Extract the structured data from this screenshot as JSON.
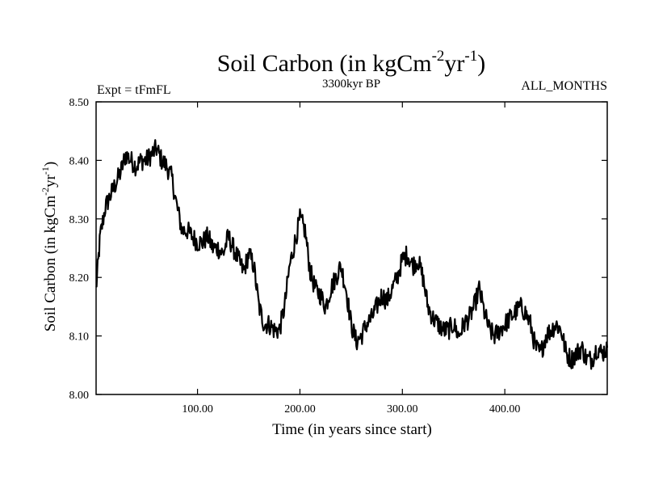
{
  "chart_data": {
    "type": "line",
    "title": "Soil Carbon (in kgCm",
    "title_sup1": "-2",
    "title_mid": "yr",
    "title_sup2": "-1",
    "title_end": ")",
    "subtitle_left": "Expt = tFmFL",
    "subtitle_center": "3300kyr BP",
    "subtitle_right": "ALL_MONTHS",
    "xlabel": "Time (in years since start)",
    "ylabel": "Soil Carbon (in kgCm",
    "ylabel_sup1": "-2",
    "ylabel_mid": "yr",
    "ylabel_sup2": "-1",
    "ylabel_end": ")",
    "xlim": [
      1,
      500
    ],
    "ylim": [
      8.0,
      8.5
    ],
    "xticks": [
      {
        "value": 100,
        "label": "100.00"
      },
      {
        "value": 200,
        "label": "200.00"
      },
      {
        "value": 300,
        "label": "300.00"
      },
      {
        "value": 400,
        "label": "400.00"
      }
    ],
    "yticks": [
      {
        "value": 8.0,
        "label": "8.00"
      },
      {
        "value": 8.1,
        "label": "8.10"
      },
      {
        "value": 8.2,
        "label": "8.20"
      },
      {
        "value": 8.3,
        "label": "8.30"
      },
      {
        "value": 8.4,
        "label": "8.40"
      },
      {
        "value": 8.5,
        "label": "8.50"
      }
    ],
    "series": [
      {
        "name": "Soil Carbon",
        "color": "#000000",
        "x": [
          1,
          5,
          10,
          15,
          20,
          25,
          30,
          35,
          40,
          45,
          50,
          55,
          60,
          65,
          70,
          75,
          80,
          85,
          90,
          95,
          100,
          105,
          110,
          115,
          120,
          125,
          130,
          135,
          140,
          145,
          150,
          155,
          160,
          165,
          170,
          175,
          180,
          185,
          190,
          195,
          200,
          205,
          210,
          215,
          220,
          225,
          230,
          235,
          240,
          245,
          250,
          255,
          260,
          265,
          270,
          275,
          280,
          285,
          290,
          295,
          300,
          305,
          310,
          315,
          320,
          325,
          330,
          335,
          340,
          345,
          350,
          355,
          360,
          365,
          370,
          375,
          380,
          385,
          390,
          395,
          400,
          405,
          410,
          415,
          420,
          425,
          430,
          435,
          440,
          445,
          450,
          455,
          460,
          465,
          470,
          475,
          480,
          485,
          490,
          495,
          500
        ],
        "values": [
          8.18,
          8.27,
          8.32,
          8.34,
          8.36,
          8.38,
          8.41,
          8.4,
          8.39,
          8.4,
          8.4,
          8.41,
          8.42,
          8.4,
          8.39,
          8.37,
          8.32,
          8.28,
          8.28,
          8.27,
          8.26,
          8.26,
          8.27,
          8.25,
          8.25,
          8.24,
          8.27,
          8.25,
          8.23,
          8.21,
          8.24,
          8.22,
          8.15,
          8.12,
          8.12,
          8.11,
          8.11,
          8.15,
          8.22,
          8.26,
          8.3,
          8.28,
          8.21,
          8.18,
          8.17,
          8.15,
          8.18,
          8.2,
          8.22,
          8.18,
          8.12,
          8.09,
          8.1,
          8.12,
          8.13,
          8.15,
          8.17,
          8.16,
          8.18,
          8.2,
          8.23,
          8.24,
          8.22,
          8.23,
          8.2,
          8.15,
          8.13,
          8.12,
          8.11,
          8.11,
          8.12,
          8.1,
          8.12,
          8.13,
          8.15,
          8.18,
          8.14,
          8.11,
          8.1,
          8.11,
          8.12,
          8.13,
          8.14,
          8.15,
          8.14,
          8.12,
          8.08,
          8.07,
          8.1,
          8.11,
          8.12,
          8.11,
          8.07,
          8.06,
          8.07,
          8.08,
          8.06,
          8.06,
          8.08,
          8.07,
          8.08
        ]
      }
    ]
  }
}
